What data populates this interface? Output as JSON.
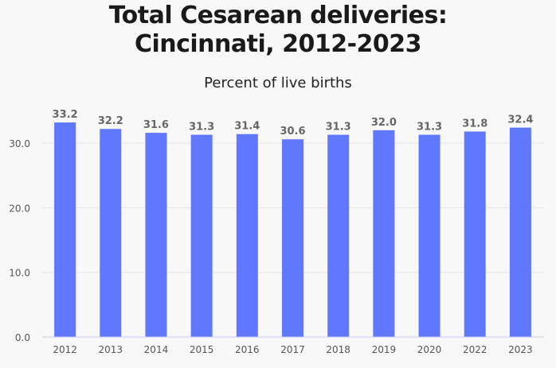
{
  "chart_data": {
    "type": "bar",
    "title": "Total Cesarean deliveries:\nCincinnati, 2012-2023",
    "title_lines": [
      "Total Cesarean deliveries:",
      "Cincinnati, 2012-2023"
    ],
    "subtitle": "Percent of live births",
    "categories": [
      "2012",
      "2013",
      "2014",
      "2015",
      "2016",
      "2017",
      "2018",
      "2019",
      "2020",
      "2022",
      "2023"
    ],
    "values": [
      33.2,
      32.2,
      31.6,
      31.3,
      31.4,
      30.6,
      31.3,
      32.0,
      31.3,
      31.8,
      32.4
    ],
    "data_labels": [
      "33.2",
      "32.2",
      "31.6",
      "31.3",
      "31.4",
      "30.6",
      "31.3",
      "32.0",
      "31.3",
      "31.8",
      "32.4"
    ],
    "ylim": [
      0,
      33.2
    ],
    "yticks": [
      "0.0",
      "10.0",
      "20.0",
      "30.0"
    ],
    "grid": true,
    "colors": {
      "bar": "#6078ff",
      "label": "#666666",
      "grid": "#e4e4e4",
      "axis": "#c9cde0"
    }
  }
}
